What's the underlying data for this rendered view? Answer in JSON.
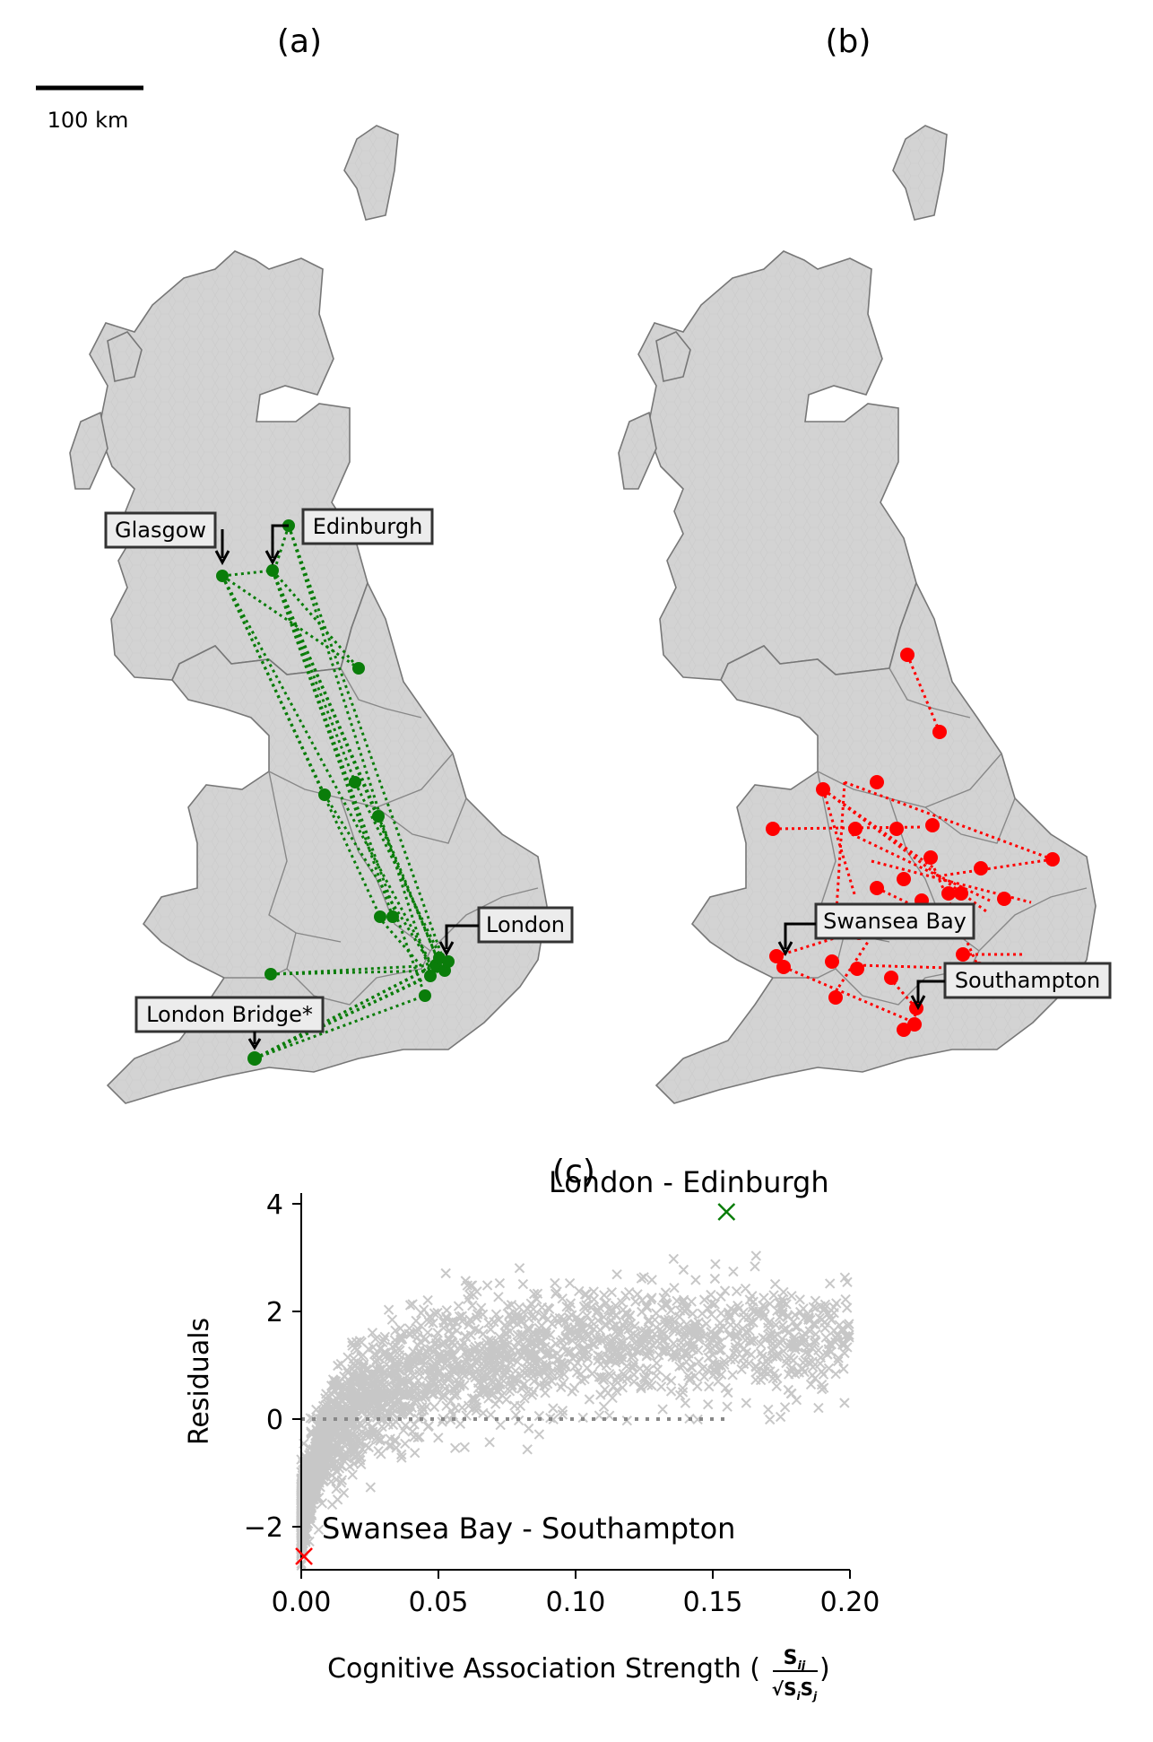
{
  "panels": {
    "a": {
      "title": "(a)"
    },
    "b": {
      "title": "(b)"
    },
    "c": {
      "title": "(c)"
    }
  },
  "scale_bar": {
    "label": "100 km"
  },
  "map_labels": {
    "glasgow": "Glasgow",
    "edinburgh": "Edinburgh",
    "london": "London",
    "london_bridge": "London Bridge*",
    "swansea_bay": "Swansea Bay",
    "southampton": "Southampton"
  },
  "colors": {
    "land": "#d3d3d3",
    "region_border": "#888888",
    "green": "#0a7d0a",
    "red": "#ff0000",
    "scatter": "#000000",
    "zero_line": "#888888"
  },
  "chart_data": {
    "type": "scatter",
    "title": "(c)",
    "xlabel": "Cognitive Association Strength (",
    "xlabel_fraction": {
      "numerator": "S",
      "numerator_sub": "ij",
      "denominator": "√S",
      "denominator_sub1": "i",
      "denominator_mid": "S",
      "denominator_sub2": "j"
    },
    "xlabel_close": ")",
    "ylabel": "Residuals",
    "xlim": [
      0.0,
      0.2
    ],
    "ylim": [
      -2.8,
      4.2
    ],
    "xticks": [
      "0.00",
      "0.05",
      "0.10",
      "0.15",
      "0.20"
    ],
    "yticks": [
      "−2",
      "0",
      "2",
      "4"
    ],
    "zero_line": {
      "y": 0,
      "x_range": [
        0.0,
        0.155
      ]
    },
    "series": [
      {
        "marker": "x",
        "color": "#000000",
        "trend": {
          "x": [
            0.0,
            0.005,
            0.01,
            0.02,
            0.03,
            0.05,
            0.07,
            0.1,
            0.13,
            0.16,
            0.19
          ],
          "y": [
            -1.8,
            -0.9,
            -0.35,
            0.2,
            0.55,
            0.95,
            1.2,
            1.35,
            1.45,
            1.45,
            1.45
          ]
        },
        "spread": 0.55,
        "approx_points": 5000
      }
    ],
    "highlights": [
      {
        "label": "London - Edinburgh",
        "x": 0.155,
        "y": 3.85,
        "color": "#0a7d0a"
      },
      {
        "label": "Swansea Bay - Southampton",
        "x": 0.001,
        "y": -2.55,
        "color": "#ff0000"
      }
    ]
  }
}
